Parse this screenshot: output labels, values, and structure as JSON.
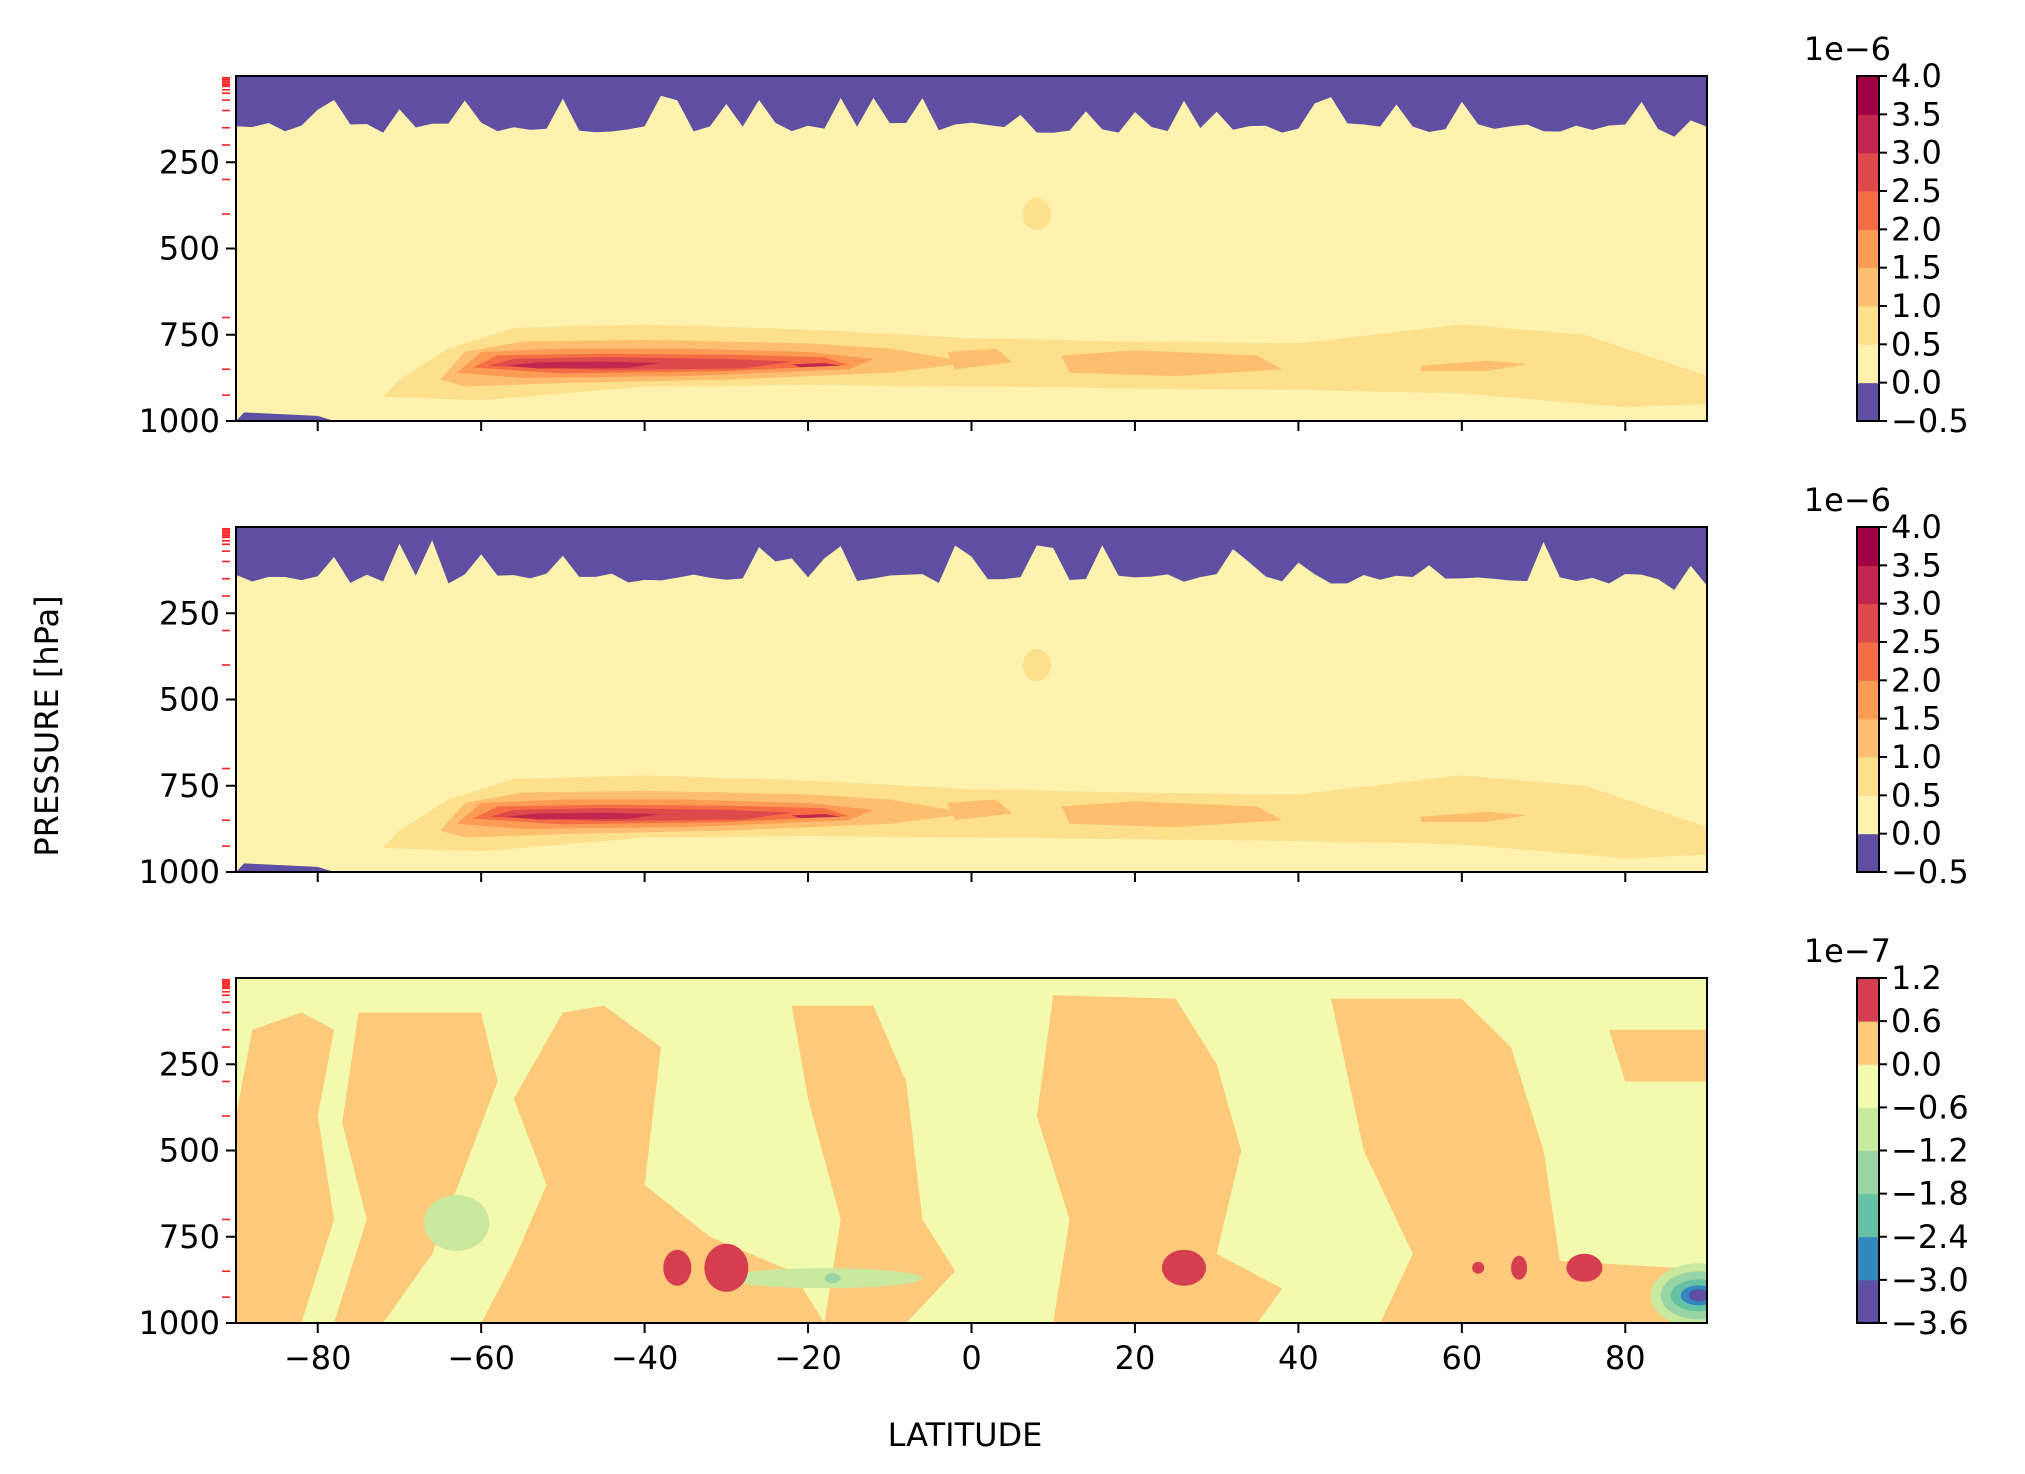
{
  "chart_data": [
    {
      "type": "heatmap",
      "panel": "top",
      "xlabel": "",
      "ylabel": "PRESSURE [hPa]",
      "xlim": [
        -90,
        90
      ],
      "ylim": [
        1000,
        0
      ],
      "x_ticks": [
        -80,
        -60,
        -40,
        -20,
        0,
        20,
        40,
        60,
        80
      ],
      "y_ticks": [
        "250",
        "500",
        "750",
        "1000"
      ],
      "y_tick_values": [
        250,
        500,
        750,
        1000
      ],
      "colorbar": {
        "offset_text": "1e−6",
        "levels": [
          -0.5,
          0.0,
          0.5,
          1.0,
          1.5,
          2.0,
          2.5,
          3.0,
          3.5,
          4.0
        ],
        "labels": [
          "−0.5",
          "0.0",
          "0.5",
          "1.0",
          "1.5",
          "2.0",
          "2.5",
          "3.0",
          "3.5",
          "4.0"
        ],
        "colors": [
          "#5e4fa2",
          "#fff2ae",
          "#fde08b",
          "#fdbf6f",
          "#fb9b54",
          "#f46d43",
          "#dc4a4c",
          "#c1264f",
          "#9e0142"
        ]
      },
      "features": {
        "negative_region_top_hpa": 150,
        "jet_core_latitude": -45,
        "jet_core_pressure_hpa": 850,
        "jet_peak_value_e6": 3.6
      }
    },
    {
      "type": "heatmap",
      "panel": "middle",
      "xlabel": "",
      "ylabel": "PRESSURE [hPa]",
      "xlim": [
        -90,
        90
      ],
      "ylim": [
        1000,
        0
      ],
      "x_ticks": [
        -80,
        -60,
        -40,
        -20,
        0,
        20,
        40,
        60,
        80
      ],
      "y_ticks": [
        "250",
        "500",
        "750",
        "1000"
      ],
      "y_tick_values": [
        250,
        500,
        750,
        1000
      ],
      "colorbar": {
        "offset_text": "1e−6",
        "levels": [
          -0.5,
          0.0,
          0.5,
          1.0,
          1.5,
          2.0,
          2.5,
          3.0,
          3.5,
          4.0
        ],
        "labels": [
          "−0.5",
          "0.0",
          "0.5",
          "1.0",
          "1.5",
          "2.0",
          "2.5",
          "3.0",
          "3.5",
          "4.0"
        ],
        "colors": [
          "#5e4fa2",
          "#fff2ae",
          "#fde08b",
          "#fdbf6f",
          "#fb9b54",
          "#f46d43",
          "#dc4a4c",
          "#c1264f",
          "#9e0142"
        ]
      },
      "features": {
        "negative_region_top_hpa": 150,
        "jet_core_latitude": -45,
        "jet_core_pressure_hpa": 850,
        "jet_peak_value_e6": 3.6
      }
    },
    {
      "type": "heatmap",
      "panel": "bottom",
      "xlabel": "LATITUDE",
      "ylabel": "",
      "xlim": [
        -90,
        90
      ],
      "ylim": [
        1000,
        0
      ],
      "x_ticks": [
        -80,
        -60,
        -40,
        -20,
        0,
        20,
        40,
        60,
        80
      ],
      "x_tick_labels": [
        "−80",
        "−60",
        "−40",
        "−20",
        "0",
        "20",
        "40",
        "60",
        "80"
      ],
      "y_ticks": [
        "250",
        "500",
        "750",
        "1000"
      ],
      "y_tick_values": [
        250,
        500,
        750,
        1000
      ],
      "colorbar": {
        "offset_text": "1e−7",
        "levels": [
          -3.6,
          -3.0,
          -2.4,
          -1.8,
          -1.2,
          -0.6,
          0.0,
          0.6,
          1.2
        ],
        "labels": [
          "−3.6",
          "−3.0",
          "−2.4",
          "−1.8",
          "−1.2",
          "−0.6",
          "0.0",
          "0.6",
          "1.2"
        ],
        "colors": [
          "#5e4fa2",
          "#3288bd",
          "#66c2a5",
          "#99d5a4",
          "#c9e99e",
          "#f3f9ad",
          "#fdc97a",
          "#d53e4f"
        ]
      },
      "features": {
        "positive_spots_latitudes": [
          -36,
          -30,
          26,
          62,
          67,
          75
        ],
        "negative_spot_latitude": 88,
        "negative_spot_pressure_hpa": 920
      }
    }
  ]
}
